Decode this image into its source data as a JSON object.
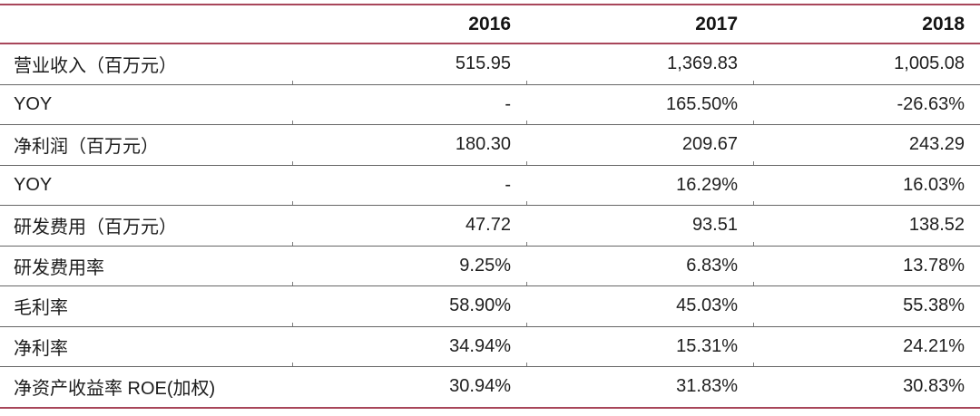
{
  "accent_color": "#a8465a",
  "separator_color": "#666666",
  "table": {
    "columns": [
      "2016",
      "2017",
      "2018"
    ],
    "rows": [
      {
        "label": "营业收入（百万元）",
        "values": [
          "515.95",
          "1,369.83",
          "1,005.08"
        ]
      },
      {
        "label": "YOY",
        "values": [
          "-",
          "165.50%",
          "-26.63%"
        ]
      },
      {
        "label": "净利润（百万元）",
        "values": [
          "180.30",
          "209.67",
          "243.29"
        ]
      },
      {
        "label": "YOY",
        "values": [
          "-",
          "16.29%",
          "16.03%"
        ]
      },
      {
        "label": "研发费用（百万元）",
        "values": [
          "47.72",
          "93.51",
          "138.52"
        ]
      },
      {
        "label": "研发费用率",
        "values": [
          "9.25%",
          "6.83%",
          "13.78%"
        ]
      },
      {
        "label": "毛利率",
        "values": [
          "58.90%",
          "45.03%",
          "55.38%"
        ]
      },
      {
        "label": "净利率",
        "values": [
          "34.94%",
          "15.31%",
          "24.21%"
        ]
      },
      {
        "label": "净资产收益率 ROE(加权)",
        "values": [
          "30.94%",
          "31.83%",
          "30.83%"
        ]
      }
    ]
  },
  "chart_data": {
    "type": "table",
    "title": "",
    "columns": [
      "",
      "2016",
      "2017",
      "2018"
    ],
    "rows": [
      [
        "营业收入（百万元）",
        "515.95",
        "1,369.83",
        "1,005.08"
      ],
      [
        "YOY",
        "-",
        "165.50%",
        "-26.63%"
      ],
      [
        "净利润（百万元）",
        "180.30",
        "209.67",
        "243.29"
      ],
      [
        "YOY",
        "-",
        "16.29%",
        "16.03%"
      ],
      [
        "研发费用（百万元）",
        "47.72",
        "93.51",
        "138.52"
      ],
      [
        "研发费用率",
        "9.25%",
        "6.83%",
        "13.78%"
      ],
      [
        "毛利率",
        "58.90%",
        "45.03%",
        "55.38%"
      ],
      [
        "净利率",
        "34.94%",
        "15.31%",
        "24.21%"
      ],
      [
        "净资产收益率 ROE(加权)",
        "30.94%",
        "31.83%",
        "30.83%"
      ]
    ]
  }
}
